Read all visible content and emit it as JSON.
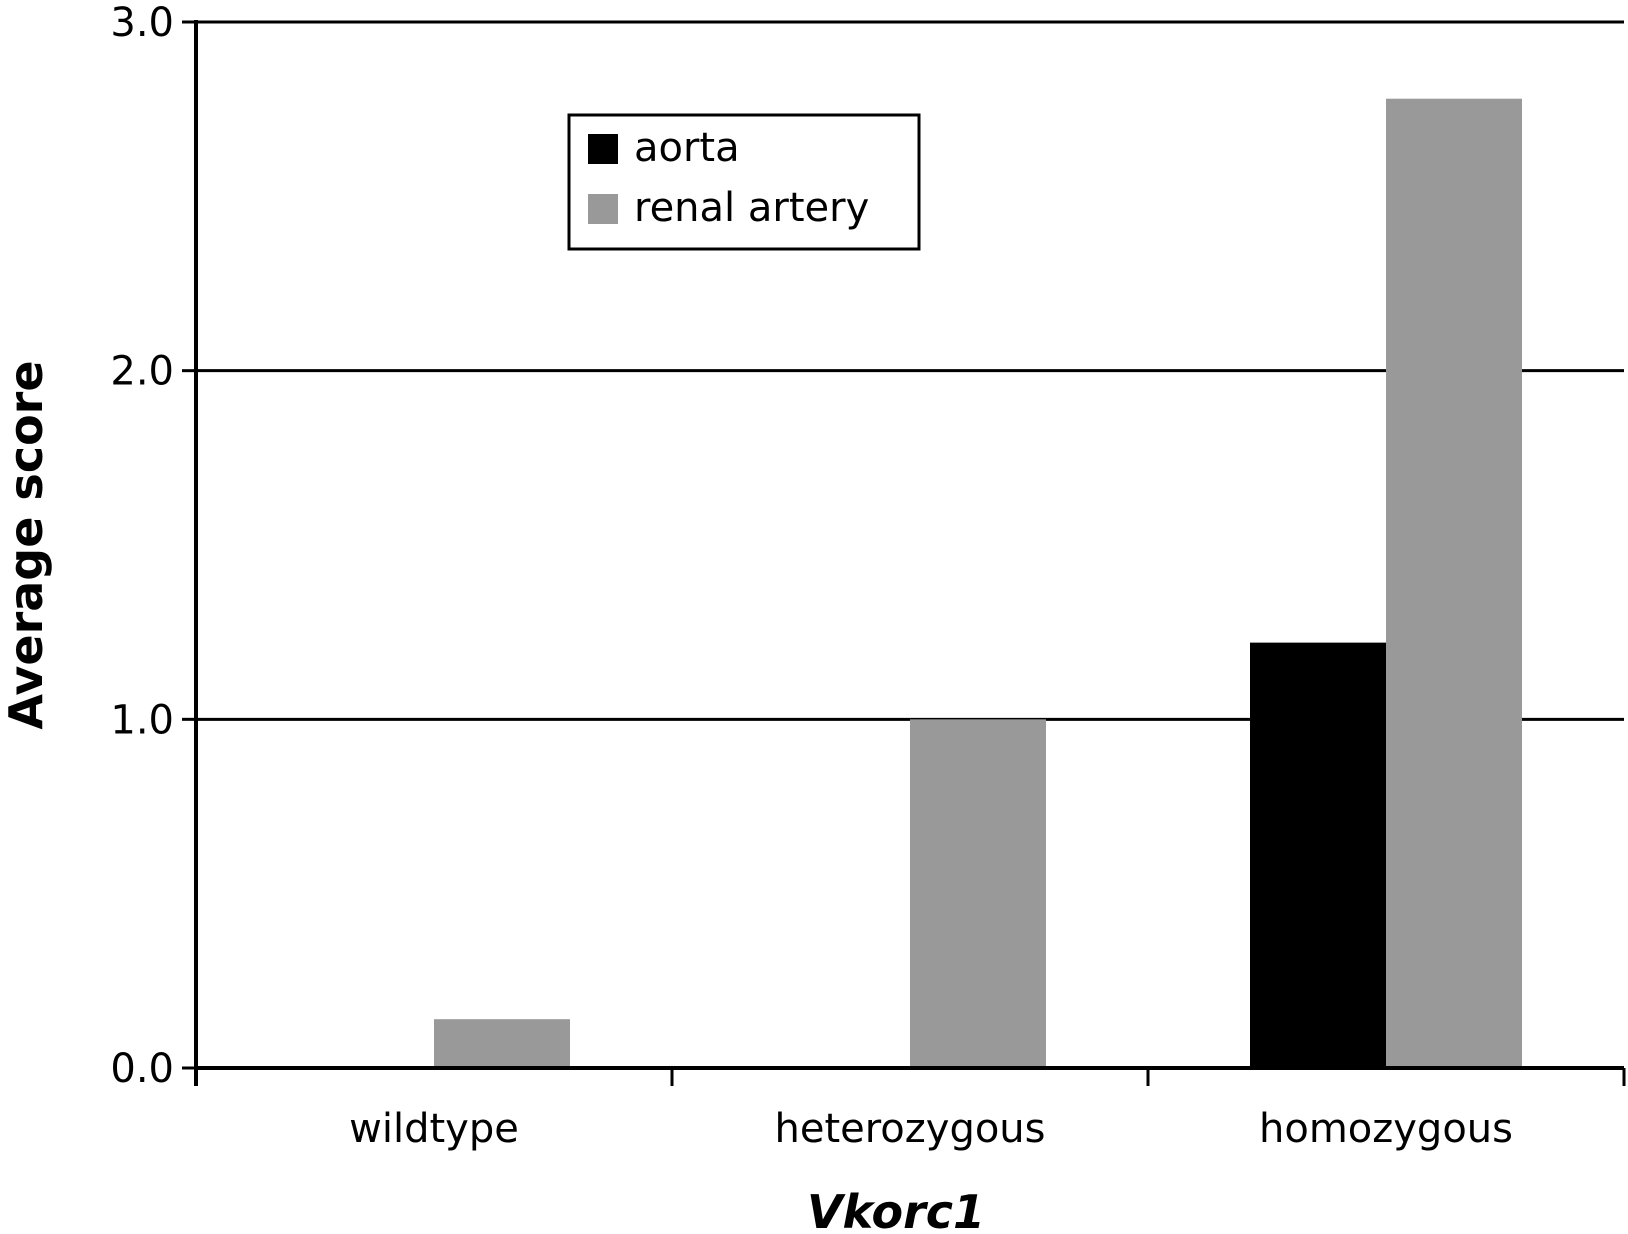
{
  "chart_data": {
    "type": "bar",
    "categories": [
      "wildtype",
      "heterozygous",
      "homozygous"
    ],
    "series": [
      {
        "name": "aorta",
        "color": "#000000",
        "values": [
          0,
          0,
          1.22
        ]
      },
      {
        "name": "renal artery",
        "color": "#999999",
        "values": [
          0.14,
          1.0,
          2.78
        ]
      }
    ],
    "xlabel": "Vkorc1",
    "ylabel": "Average score",
    "ylim": [
      0,
      3.0
    ],
    "yticks": [
      "0.0",
      "1.0",
      "2.0",
      "3.0"
    ],
    "grid": true,
    "legend_position": "top-center"
  }
}
